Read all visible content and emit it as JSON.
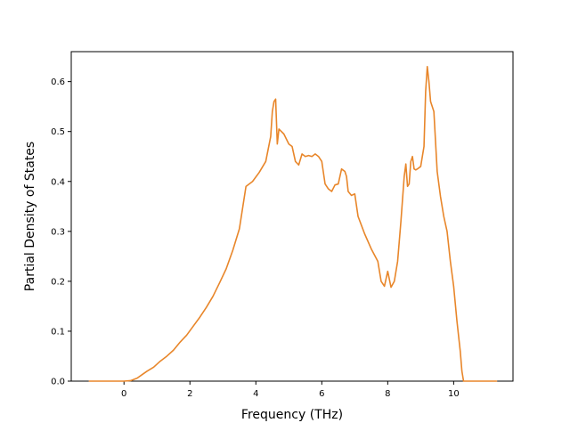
{
  "colors": {
    "background": "#ffffff",
    "axes": "#000000",
    "series": "#e8862a"
  },
  "chart_data": {
    "type": "line",
    "title": "",
    "xlabel": "Frequency (THz)",
    "ylabel": "Partial Density of States",
    "xlim": [
      -1.6,
      11.8
    ],
    "ylim": [
      0.0,
      0.66
    ],
    "grid": false,
    "legend": "none",
    "x_ticks": [
      0,
      2,
      4,
      6,
      8,
      10
    ],
    "x_tick_labels": [
      "0",
      "2",
      "4",
      "6",
      "8",
      "10"
    ],
    "y_ticks": [
      0.0,
      0.1,
      0.2,
      0.3,
      0.4,
      0.5,
      0.6
    ],
    "y_tick_labels": [
      "0.0",
      "0.1",
      "0.2",
      "0.3",
      "0.4",
      "0.5",
      "0.6"
    ],
    "series": [
      {
        "color": "#e8862a",
        "x": [
          -1.05,
          0.0,
          0.2,
          0.4,
          0.55,
          0.7,
          0.9,
          1.1,
          1.3,
          1.5,
          1.7,
          1.9,
          2.1,
          2.3,
          2.5,
          2.7,
          2.9,
          3.1,
          3.3,
          3.5,
          3.7,
          3.9,
          4.1,
          4.3,
          4.45,
          4.5,
          4.55,
          4.6,
          4.65,
          4.7,
          4.85,
          5.0,
          5.1,
          5.2,
          5.3,
          5.4,
          5.5,
          5.6,
          5.7,
          5.8,
          5.9,
          6.0,
          6.1,
          6.2,
          6.3,
          6.4,
          6.5,
          6.6,
          6.7,
          6.75,
          6.8,
          6.9,
          7.0,
          7.1,
          7.3,
          7.5,
          7.7,
          7.8,
          7.9,
          8.0,
          8.1,
          8.2,
          8.3,
          8.4,
          8.5,
          8.55,
          8.6,
          8.65,
          8.7,
          8.75,
          8.8,
          8.85,
          8.9,
          9.0,
          9.1,
          9.15,
          9.2,
          9.25,
          9.3,
          9.4,
          9.5,
          9.6,
          9.7,
          9.8,
          9.9,
          10.0,
          10.1,
          10.2,
          10.25,
          10.3,
          10.5,
          11.3
        ],
        "y": [
          0.0,
          0.0,
          0.001,
          0.006,
          0.013,
          0.02,
          0.028,
          0.04,
          0.05,
          0.062,
          0.078,
          0.092,
          0.11,
          0.128,
          0.148,
          0.17,
          0.197,
          0.225,
          0.262,
          0.305,
          0.39,
          0.4,
          0.418,
          0.44,
          0.49,
          0.54,
          0.56,
          0.565,
          0.475,
          0.505,
          0.495,
          0.475,
          0.47,
          0.44,
          0.433,
          0.455,
          0.45,
          0.452,
          0.45,
          0.455,
          0.45,
          0.44,
          0.395,
          0.385,
          0.38,
          0.393,
          0.395,
          0.425,
          0.42,
          0.41,
          0.38,
          0.372,
          0.375,
          0.33,
          0.295,
          0.265,
          0.24,
          0.2,
          0.19,
          0.22,
          0.188,
          0.2,
          0.24,
          0.32,
          0.41,
          0.435,
          0.39,
          0.395,
          0.44,
          0.45,
          0.425,
          0.423,
          0.425,
          0.43,
          0.47,
          0.58,
          0.63,
          0.6,
          0.56,
          0.54,
          0.42,
          0.37,
          0.33,
          0.3,
          0.24,
          0.19,
          0.12,
          0.06,
          0.02,
          0.0,
          0.0,
          0.0
        ]
      }
    ]
  }
}
